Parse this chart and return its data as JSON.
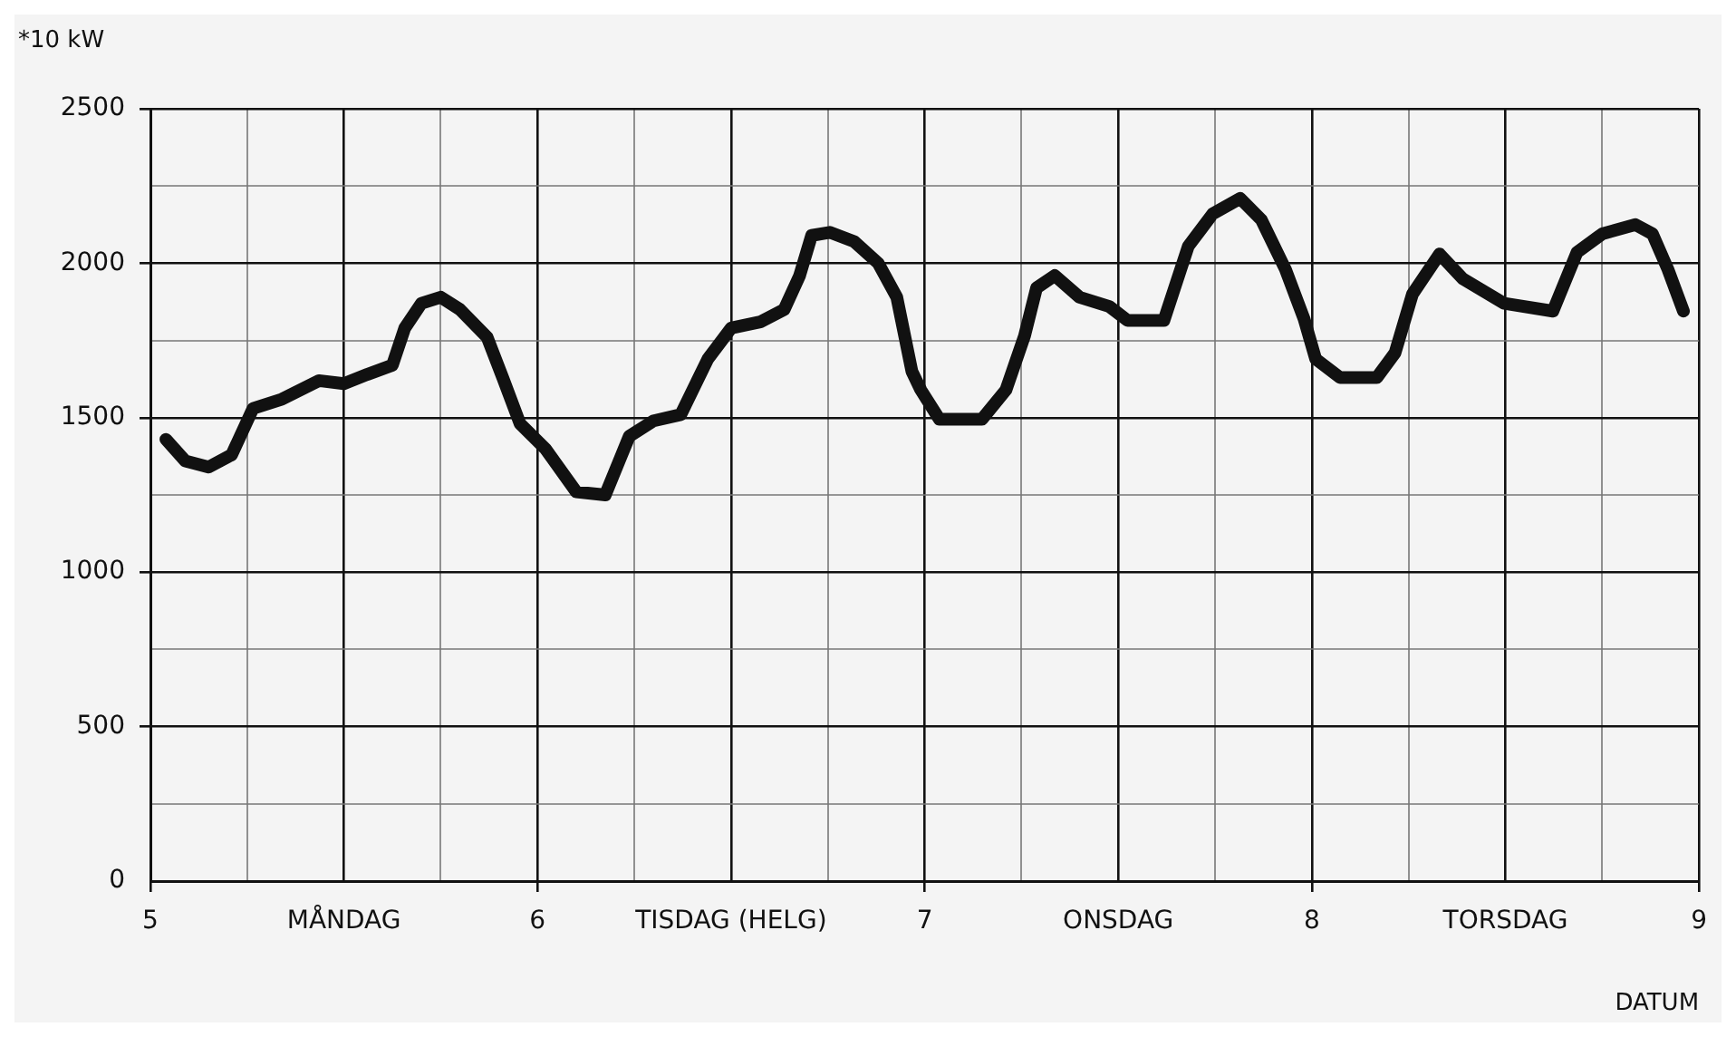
{
  "chart_data": {
    "type": "line",
    "ylabel": "*10 kW",
    "xlabel": "DATUM",
    "xlim": [
      5,
      9
    ],
    "ylim": [
      0,
      2500
    ],
    "xticks": [
      5,
      {
        "value": 5.25,
        "label": null
      },
      {
        "value": 5.5,
        "label": "MÅNDAG"
      },
      {
        "value": 5.75,
        "label": null
      },
      6,
      {
        "value": 6.25,
        "label": null
      },
      {
        "value": 6.5,
        "label": "TISDAG (HELG)"
      },
      {
        "value": 6.75,
        "label": null
      },
      7,
      {
        "value": 7.25,
        "label": null
      },
      {
        "value": 7.5,
        "label": "ONSDAG"
      },
      {
        "value": 7.75,
        "label": null
      },
      8,
      {
        "value": 8.25,
        "label": null
      },
      {
        "value": 8.5,
        "label": "TORSDAG"
      },
      {
        "value": 8.75,
        "label": null
      },
      9
    ],
    "yticks": [
      0,
      {
        "value": 250,
        "label": null
      },
      500,
      {
        "value": 750,
        "label": null
      },
      1000,
      {
        "value": 1250,
        "label": null
      },
      1500,
      {
        "value": 1750,
        "label": null
      },
      2000,
      {
        "value": 2250,
        "label": null
      },
      2500
    ],
    "grid": true,
    "legend": false,
    "marker": "none",
    "line_style": "solid",
    "series": [
      {
        "color": "#111111",
        "x": [
          5.04,
          5.09,
          5.15,
          5.21,
          5.265,
          5.34,
          5.435,
          5.5,
          5.56,
          5.625,
          5.657,
          5.7,
          5.75,
          5.8,
          5.87,
          5.91,
          5.955,
          6.02,
          6.1,
          6.175,
          6.237,
          6.3,
          6.37,
          6.44,
          6.5,
          6.575,
          6.637,
          6.677,
          6.708,
          6.755,
          6.818,
          6.88,
          6.928,
          6.967,
          6.99,
          7.038,
          7.148,
          7.21,
          7.258,
          7.289,
          7.336,
          7.4,
          7.477,
          7.524,
          7.618,
          7.681,
          7.744,
          7.815,
          7.87,
          7.932,
          7.98,
          8.01,
          8.073,
          8.168,
          8.215,
          8.26,
          8.33,
          8.39,
          8.497,
          8.623,
          8.685,
          8.75,
          8.836,
          8.88,
          8.92,
          8.96
        ],
        "values": [
          1430,
          1360,
          1340,
          1380,
          1530,
          1560,
          1620,
          1610,
          1640,
          1670,
          1790,
          1870,
          1890,
          1850,
          1760,
          1630,
          1480,
          1400,
          1260,
          1250,
          1440,
          1490,
          1510,
          1690,
          1790,
          1810,
          1850,
          1960,
          2090,
          2100,
          2070,
          2000,
          1890,
          1650,
          1590,
          1495,
          1495,
          1590,
          1765,
          1920,
          1960,
          1890,
          1860,
          1815,
          1815,
          2055,
          2160,
          2210,
          2140,
          1980,
          1820,
          1690,
          1630,
          1630,
          1710,
          1900,
          2030,
          1950,
          1870,
          1845,
          2035,
          2095,
          2125,
          2095,
          1980,
          1845
        ]
      }
    ]
  }
}
